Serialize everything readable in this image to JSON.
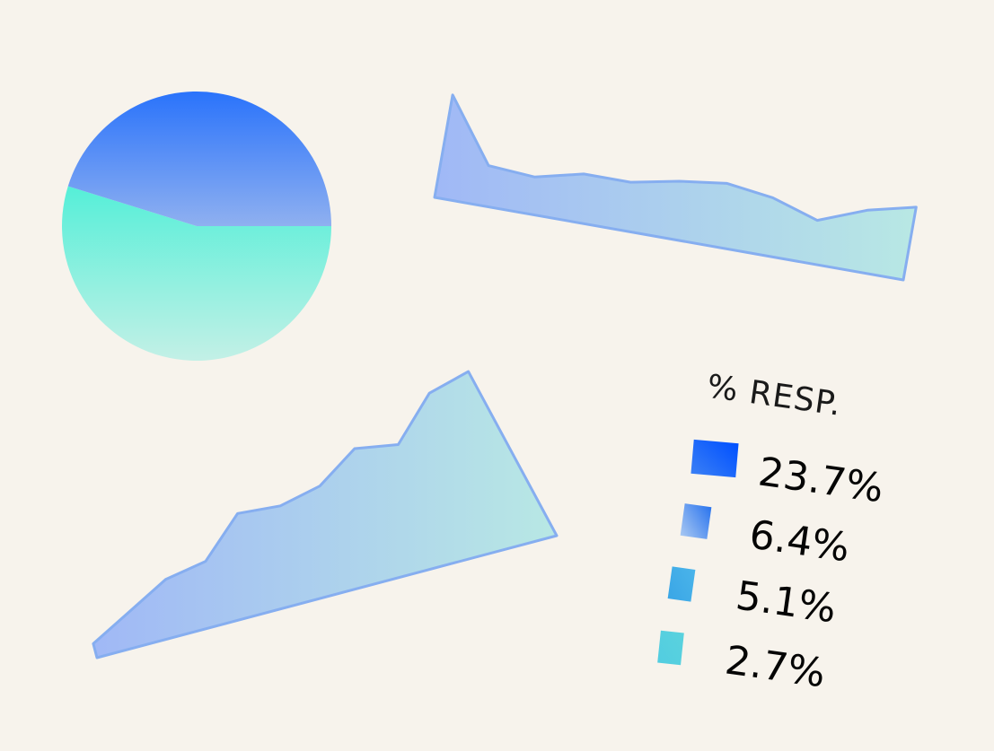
{
  "chart_data": [
    {
      "type": "pie",
      "title": "",
      "slices": [
        {
          "value": 0.548
        },
        {
          "value": 0.452
        }
      ]
    },
    {
      "type": "area",
      "title": "",
      "x": [
        0,
        1,
        2,
        3,
        4,
        5,
        6,
        7,
        8,
        9,
        10
      ],
      "values": [
        10,
        3.9,
        3.6,
        4.7,
        4.7,
        5.6,
        6.2,
        5.6,
        4.2,
        6.0,
        7.1
      ],
      "ylim": [
        0,
        10
      ]
    },
    {
      "type": "area",
      "title": "",
      "x": [
        0,
        1,
        2,
        3,
        4,
        5,
        6,
        7,
        8,
        9,
        10,
        11
      ],
      "values": [
        0.8,
        2.0,
        3.2,
        3.6,
        5.7,
        5.5,
        6.0,
        7.5,
        7.1,
        9.4,
        10,
        0
      ],
      "ylim": [
        0,
        10
      ]
    }
  ],
  "legend": {
    "title": "% RESP.",
    "items": [
      {
        "label": "23.7%",
        "color": "#0b5bff"
      },
      {
        "label": "6.4%",
        "color": "#4a8cf0"
      },
      {
        "label": "5.1%",
        "color": "#3ea8e6"
      },
      {
        "label": "2.7%",
        "color": "#54cee0"
      }
    ]
  }
}
